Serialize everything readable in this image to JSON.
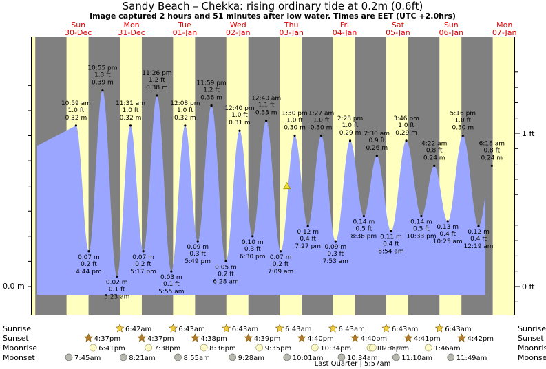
{
  "title": "Sandy Beach – Chekka: rising  ordinary tide at 0.2m (0.6ft)",
  "subtitle": "Image captured 2 hours and 51 minutes after low water. Times are EET (UTC +2.0hrs)",
  "colors": {
    "day": "#ffffc0",
    "night": "#808080",
    "tide": "#9aa6ff",
    "day_label": "#e00000",
    "sun_star": "#f4d03f",
    "moon": "#fffbc8",
    "moonset": "#b8b8b0"
  },
  "days": [
    {
      "dow": "Sun",
      "date": "30-Dec"
    },
    {
      "dow": "Mon",
      "date": "31-Dec"
    },
    {
      "dow": "Tue",
      "date": "01-Jan"
    },
    {
      "dow": "Wed",
      "date": "02-Jan"
    },
    {
      "dow": "Thu",
      "date": "03-Jan"
    },
    {
      "dow": "Fri",
      "date": "04-Jan"
    },
    {
      "dow": "Sat",
      "date": "05-Jan"
    },
    {
      "dow": "Sun",
      "date": "06-Jan"
    },
    {
      "dow": "Mon",
      "date": "07-Jan"
    }
  ],
  "axes": {
    "left_label": "0.0 m",
    "right_labels": [
      {
        "value": 0,
        "label": "0 ft"
      },
      {
        "value": 1,
        "label": "1 ft"
      }
    ]
  },
  "chart_data": {
    "type": "area",
    "x_unit": "hours from 30-Dec 00:00 EET",
    "y_unit": "ft",
    "ylim": [
      -0.08,
      1.38
    ],
    "xlim": [
      -6.5,
      186.5
    ],
    "series": [
      {
        "extremes": [
          {
            "hour": 10.98,
            "m": 0.32,
            "time": "10:59 am",
            "m_label": "0.32 m",
            "ft_label": "1.0 ft",
            "type": "high"
          },
          {
            "hour": 16.73,
            "m": 0.07,
            "time": "4:44 pm",
            "m_label": "0.07 m",
            "ft_label": "0.2 ft",
            "type": "low"
          },
          {
            "hour": 22.92,
            "m": 0.39,
            "time": "10:55 pm",
            "m_label": "0.39 m",
            "ft_label": "1.3 ft",
            "type": "high"
          },
          {
            "hour": 29.38,
            "m": 0.02,
            "time": "5:23 am",
            "m_label": "0.02 m",
            "ft_label": "0.1 ft",
            "type": "low"
          },
          {
            "hour": 35.52,
            "m": 0.32,
            "time": "11:31 am",
            "m_label": "0.32 m",
            "ft_label": "1.0 ft",
            "type": "high"
          },
          {
            "hour": 41.28,
            "m": 0.07,
            "time": "5:17 pm",
            "m_label": "0.07 m",
            "ft_label": "0.2 ft",
            "type": "low"
          },
          {
            "hour": 47.43,
            "m": 0.38,
            "time": "11:26 pm",
            "m_label": "0.38 m",
            "ft_label": "1.2 ft",
            "type": "high"
          },
          {
            "hour": 53.92,
            "m": 0.03,
            "time": "5:55 am",
            "m_label": "0.03 m",
            "ft_label": "0.1 ft",
            "type": "low"
          },
          {
            "hour": 60.13,
            "m": 0.32,
            "time": "12:08 pm",
            "m_label": "0.32 m",
            "ft_label": "1.0 ft",
            "type": "high"
          },
          {
            "hour": 65.82,
            "m": 0.09,
            "time": "5:49 pm",
            "m_label": "0.09 m",
            "ft_label": "0.3 ft",
            "type": "low"
          },
          {
            "hour": 71.98,
            "m": 0.36,
            "time": "11:59 pm",
            "m_label": "0.36 m",
            "ft_label": "1.2 ft",
            "type": "high"
          },
          {
            "hour": 78.47,
            "m": 0.05,
            "time": "6:28 am",
            "m_label": "0.05 m",
            "ft_label": "0.2 ft",
            "type": "low"
          },
          {
            "hour": 84.67,
            "m": 0.31,
            "time": "12:40 pm",
            "m_label": "0.31 m",
            "ft_label": "1.0 ft",
            "type": "high"
          },
          {
            "hour": 90.5,
            "m": 0.1,
            "time": "6:30 pm",
            "m_label": "0.10 m",
            "ft_label": "0.3 ft",
            "type": "low"
          },
          {
            "hour": 96.67,
            "m": 0.33,
            "time": "12:40 am",
            "m_label": "0.33 m",
            "ft_label": "1.1 ft",
            "type": "high"
          },
          {
            "hour": 103.15,
            "m": 0.07,
            "time": "7:09 am",
            "m_label": "0.07 m",
            "ft_label": "0.2 ft",
            "type": "low"
          },
          {
            "hour": 109.5,
            "m": 0.3,
            "time": "1:30 pm",
            "m_label": "0.30 m",
            "ft_label": "1.0 ft",
            "type": "high"
          },
          {
            "hour": 115.45,
            "m": 0.12,
            "time": "7:27 pm",
            "m_label": "0.12 m",
            "ft_label": "0.4 ft",
            "type": "low"
          },
          {
            "hour": 121.45,
            "m": 0.3,
            "time": "1:27 am",
            "m_label": "0.30 m",
            "ft_label": "1.0 ft",
            "type": "high"
          },
          {
            "hour": 127.88,
            "m": 0.09,
            "time": "7:53 am",
            "m_label": "0.09 m",
            "ft_label": "0.3 ft",
            "type": "low"
          },
          {
            "hour": 134.47,
            "m": 0.29,
            "time": "2:28 pm",
            "m_label": "0.29 m",
            "ft_label": "1.0 ft",
            "type": "high"
          },
          {
            "hour": 140.63,
            "m": 0.14,
            "time": "8:38 pm",
            "m_label": "0.14 m",
            "ft_label": "0.5 ft",
            "type": "low"
          },
          {
            "hour": 146.5,
            "m": 0.26,
            "time": "2:30 am",
            "m_label": "0.26 m",
            "ft_label": "0.9 ft",
            "type": "high"
          },
          {
            "hour": 152.9,
            "m": 0.11,
            "time": "8:54 am",
            "m_label": "0.11 m",
            "ft_label": "0.4 ft",
            "type": "low"
          },
          {
            "hour": 159.77,
            "m": 0.29,
            "time": "3:46 pm",
            "m_label": "0.29 m",
            "ft_label": "1.0 ft",
            "type": "high"
          },
          {
            "hour": 166.55,
            "m": 0.14,
            "time": "10:33 pm",
            "m_label": "0.14 m",
            "ft_label": "0.5 ft",
            "type": "low"
          },
          {
            "hour": 172.37,
            "m": 0.24,
            "time": "4:22 am",
            "m_label": "0.24 m",
            "ft_label": "0.8 ft",
            "type": "high"
          },
          {
            "hour": 178.42,
            "m": 0.13,
            "time": "10:25 am",
            "m_label": "0.13 m",
            "ft_label": "0.4 ft",
            "type": "low"
          },
          {
            "hour": 185.27,
            "m": 0.3,
            "time": "5:16 pm",
            "m_label": "0.30 m",
            "ft_label": "1.0 ft",
            "type": "high"
          },
          {
            "hour": 192.32,
            "m": 0.12,
            "time": "12:19 am",
            "m_label": "0.12 m",
            "ft_label": "0.4 ft",
            "type": "low"
          },
          {
            "hour": 198.3,
            "m": 0.24,
            "time": "6:18 am",
            "m_label": "0.24 m",
            "ft_label": "0.8 ft",
            "type": "high"
          }
        ]
      }
    ],
    "current": {
      "hour": 106.0,
      "m": 0.2
    }
  },
  "rows": {
    "sunrise": {
      "label": "Sunrise",
      "items": [
        {
          "day": 1,
          "time": "6:42am"
        },
        {
          "day": 2,
          "time": "6:43am"
        },
        {
          "day": 3,
          "time": "6:43am"
        },
        {
          "day": 4,
          "time": "6:43am"
        },
        {
          "day": 5,
          "time": "6:43am"
        },
        {
          "day": 6,
          "time": "6:43am"
        },
        {
          "day": 7,
          "time": "6:43am"
        }
      ]
    },
    "sunset": {
      "label": "Sunset",
      "items": [
        {
          "day": 0,
          "time": "4:37pm"
        },
        {
          "day": 1,
          "time": "4:37pm"
        },
        {
          "day": 2,
          "time": "4:38pm"
        },
        {
          "day": 3,
          "time": "4:39pm"
        },
        {
          "day": 4,
          "time": "4:40pm"
        },
        {
          "day": 5,
          "time": "4:40pm"
        },
        {
          "day": 6,
          "time": "4:41pm"
        },
        {
          "day": 7,
          "time": "4:42pm"
        }
      ]
    },
    "moonrise": {
      "label": "Moonrise",
      "items": [
        {
          "day": 0,
          "time": "6:41pm"
        },
        {
          "day": 1,
          "time": "7:38pm"
        },
        {
          "day": 2,
          "time": "8:36pm"
        },
        {
          "day": 3,
          "time": "9:35pm"
        },
        {
          "day": 4,
          "time": "10:34pm"
        },
        {
          "day": 5,
          "time": "11:36pm"
        },
        {
          "day": 6,
          "time": "12:40am"
        },
        {
          "day": 7,
          "time": "1:46am"
        }
      ]
    },
    "moonset": {
      "label": "Moonset",
      "items": [
        {
          "day": 0,
          "time": "7:45am"
        },
        {
          "day": 1,
          "time": "8:21am"
        },
        {
          "day": 2,
          "time": "8:55am"
        },
        {
          "day": 3,
          "time": "9:28am"
        },
        {
          "day": 4,
          "time": "10:01am"
        },
        {
          "day": 5,
          "time": "10:34am"
        },
        {
          "day": 6,
          "time": "11:10am"
        },
        {
          "day": 7,
          "time": "11:49am"
        }
      ]
    }
  },
  "moon_phase": "Last Quarter | 5:57am"
}
